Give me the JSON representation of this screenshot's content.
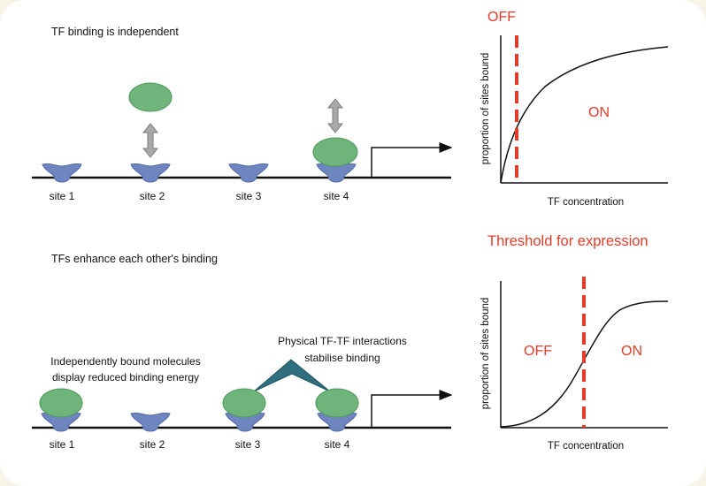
{
  "colors": {
    "background": "#f7f3e6",
    "card": "#ffffff",
    "receptor": "#6e85bf",
    "receptor_dark": "#5068a8",
    "tf_fill": "#6fb47a",
    "tf_stroke": "#4f9a5c",
    "arrow_fill": "#a9a9a9",
    "interaction": "#2f6f80",
    "red": "#e23b2a",
    "line": "#111111"
  },
  "icons": {
    "receptor": "binding-site-shape",
    "tf": "transcription-factor-ellipse",
    "double_arrow": "double-headed-arrow",
    "promoter_arrow": "transcription-start-arrow",
    "interaction": "tf-tf-interaction-wedge"
  },
  "top": {
    "heading": "TF binding is independent",
    "sites": [
      "site 1",
      "site 2",
      "site 3",
      "site 4"
    ],
    "graph": {
      "ylabel": "proportion of sites bound",
      "xlabel": "TF concentration",
      "off_label": "OFF",
      "on_label": "ON",
      "curve": "hyperbolic"
    }
  },
  "bottom": {
    "heading": "TFs enhance each other's binding",
    "threshold_label": "Threshold for expression",
    "note_independent_line1": "Independently bound molecules",
    "note_independent_line2": "display reduced binding energy",
    "note_cooperative_line1": "Physical TF-TF interactions",
    "note_cooperative_line2": "stabilise binding",
    "sites": [
      "site 1",
      "site 2",
      "site 3",
      "site 4"
    ],
    "graph": {
      "ylabel": "proportion of sites bound",
      "xlabel": "TF concentration",
      "off_label": "OFF",
      "on_label": "ON",
      "curve": "sigmoidal"
    }
  }
}
